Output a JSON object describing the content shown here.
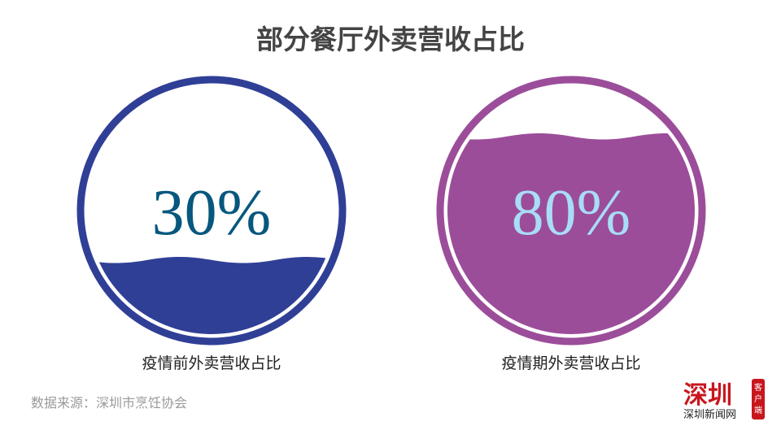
{
  "chart_data": {
    "type": "gauge",
    "title": "部分餐厅外卖营收占比",
    "unit": "%",
    "series": [
      {
        "label": "疫情前外卖营收占比",
        "value": 30,
        "display": "30%",
        "color": "#303f96",
        "text_color": "#07577e"
      },
      {
        "label": "疫情期外卖营收占比",
        "value": 80,
        "display": "80%",
        "color": "#9b4d9a",
        "text_color": "#a9dcf6"
      }
    ],
    "range": [
      0,
      100
    ]
  },
  "source": "数据来源：深圳市烹饪协会",
  "logo": {
    "main": "深圳",
    "sub": "深圳新闻网",
    "tag": "客户端",
    "color": "#c8161d"
  }
}
